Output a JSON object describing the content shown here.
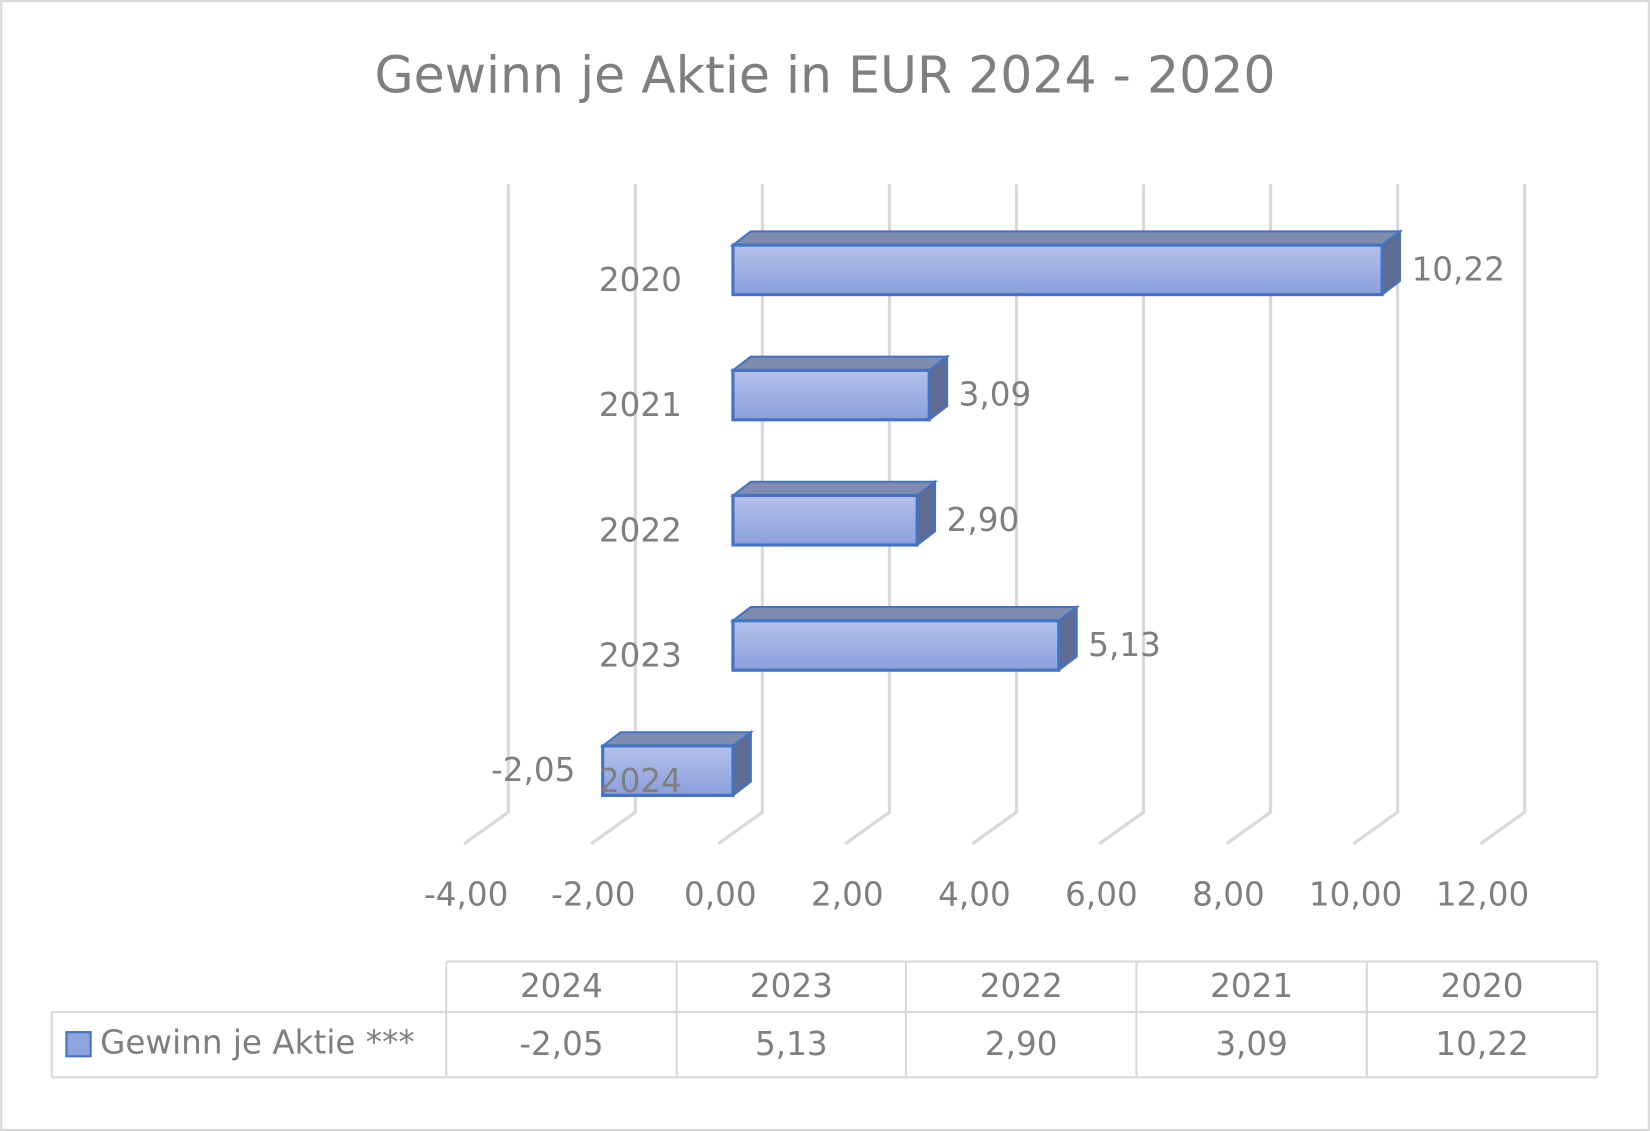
{
  "chart_data": {
    "type": "bar3d",
    "orientation": "horizontal",
    "title": "Gewinn je Aktie in EUR 2024 - 2020",
    "categories": [
      "2024",
      "2023",
      "2022",
      "2021",
      "2020"
    ],
    "series": [
      {
        "name": "Gewinn je Aktie ***",
        "color": "#8fa5dd",
        "values": [
          -2.05,
          5.13,
          2.9,
          3.09,
          10.22
        ],
        "value_labels": [
          "-2,05",
          "5,13",
          "2,90",
          "3,09",
          "10,22"
        ]
      }
    ],
    "xlim": [
      -4,
      12
    ],
    "xticks": [
      {
        "value": -4,
        "label": "-4,00"
      },
      {
        "value": -2,
        "label": "-2,00"
      },
      {
        "value": 0,
        "label": "0,00"
      },
      {
        "value": 2,
        "label": "2,00"
      },
      {
        "value": 4,
        "label": "4,00"
      },
      {
        "value": 6,
        "label": "6,00"
      },
      {
        "value": 8,
        "label": "8,00"
      },
      {
        "value": 10,
        "label": "10,00"
      },
      {
        "value": 12,
        "label": "12,00"
      }
    ],
    "grid": true
  }
}
